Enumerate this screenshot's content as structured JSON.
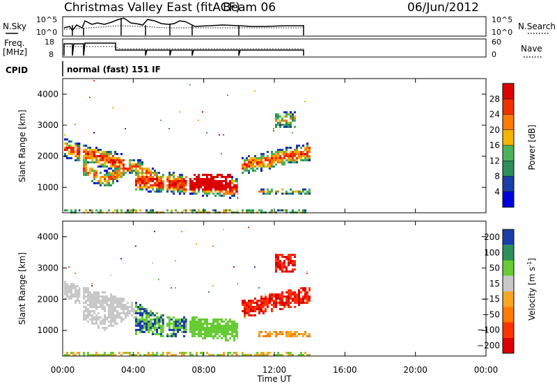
{
  "header": {
    "station": "Christmas Valley East (fitACF)",
    "beam": "Beam 06",
    "date": "06/Jun/2012"
  },
  "strips": {
    "nsky_label": "N.Sky",
    "nsky_ticks": [
      "10^5",
      "10^0"
    ],
    "nsearch_label": "N.Search",
    "nsearch_ticks": [
      "10^5",
      "10^0"
    ],
    "freq_label_1": "Freq.",
    "freq_label_2": "[MHz]",
    "freq_ticks": [
      "18",
      "8"
    ],
    "nave_label": "Nave",
    "nave_ticks": [
      "60",
      "0"
    ],
    "cpid_label": "CPID",
    "cpid_value": "normal (fast) 151 IF"
  },
  "colors": {
    "power_scale": [
      "#0000dd",
      "#1a3fa8",
      "#2d8f5a",
      "#4db35a",
      "#f5b400",
      "#ff7a00",
      "#ee3300",
      "#dd0000"
    ],
    "velocity_scale": [
      "#1a3fa8",
      "#2d8f5a",
      "#66cc33",
      "#c8c8c8",
      "#f5a623",
      "#ff7a00",
      "#ff3300",
      "#dd0000"
    ]
  },
  "chart_data": [
    {
      "type": "heatmap",
      "panel": "power",
      "ylabel": "Slant Range [km]",
      "xlim": [
        "00:00",
        "24:00"
      ],
      "ylim": [
        180,
        4500
      ],
      "yticks": [
        "1000",
        "2000",
        "3000",
        "4000"
      ],
      "colorbar_label": "Power [dB]",
      "colorbar_ticks": [
        "4",
        "8",
        "12",
        "16",
        "20",
        "24",
        "28"
      ],
      "data_coverage_end": "14:00"
    },
    {
      "type": "heatmap",
      "panel": "velocity",
      "ylabel": "Slant Range [km]",
      "xlabel": "Time UT",
      "xlim": [
        "00:00",
        "24:00"
      ],
      "ylim": [
        180,
        4500
      ],
      "xticks": [
        "00:00",
        "04:00",
        "08:00",
        "12:00",
        "16:00",
        "20:00",
        "00:00"
      ],
      "yticks": [
        "1000",
        "2000",
        "3000",
        "4000"
      ],
      "colorbar_label": "Velocity [m s^-1]",
      "colorbar_ticks": [
        "200",
        "100",
        "50",
        "15",
        "-15",
        "-50",
        "-100",
        "-200"
      ],
      "data_coverage_end": "14:00"
    }
  ]
}
